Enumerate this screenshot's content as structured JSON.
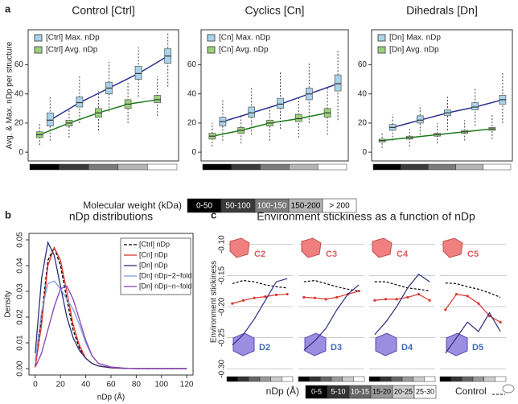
{
  "chart_data": [
    {
      "type": "box",
      "panel": "a",
      "title": "Control [Ctrl]",
      "ylabel": "Avg. & Max. nDp per structure",
      "categories": [
        null,
        null,
        null,
        null,
        null
      ],
      "category_colors": [
        "#000000",
        "#3a3a3a",
        "#7a7a7a",
        "#b4b4b4",
        "#ffffff"
      ],
      "ylim": [
        -6,
        84
      ],
      "yticks": [
        0,
        20,
        40,
        60
      ],
      "series": [
        {
          "name": "[Ctrl] Max. nDp",
          "color": "#a9d3ea",
          "line_color": "#2e3192",
          "values": [
            22,
            34,
            44,
            54,
            66
          ],
          "q1": [
            18,
            31,
            40,
            50,
            61
          ],
          "q3": [
            27,
            38,
            48,
            59,
            71
          ],
          "whisker_low": [
            8,
            20,
            28,
            38,
            45
          ],
          "whisker_high": [
            38,
            52,
            62,
            72,
            82
          ]
        },
        {
          "name": "[Ctrl] Avg. nDp",
          "color": "#9ad27a",
          "line_color": "#1a7a1a",
          "values": [
            12,
            20,
            27,
            33,
            36
          ],
          "q1": [
            10,
            18,
            24,
            30,
            34
          ],
          "q3": [
            14,
            22,
            30,
            36,
            39
          ],
          "whisker_low": [
            5,
            10,
            15,
            20,
            25
          ],
          "whisker_high": [
            20,
            30,
            42,
            48,
            52
          ]
        }
      ]
    },
    {
      "type": "box",
      "title": "Cyclics [Cn]",
      "categories": [
        null,
        null,
        null,
        null,
        null
      ],
      "category_colors": [
        "#000000",
        "#3a3a3a",
        "#7a7a7a",
        "#b4b4b4",
        "#ffffff"
      ],
      "ylim": [
        -6,
        84
      ],
      "yticks": [
        0,
        20,
        40,
        60
      ],
      "series": [
        {
          "name": "[Cn] Max. nDp",
          "color": "#a9d3ea",
          "line_color": "#2e3192",
          "values": [
            21,
            27,
            33,
            40,
            47
          ],
          "q1": [
            18,
            24,
            30,
            36,
            42
          ],
          "q3": [
            24,
            31,
            37,
            44,
            53
          ],
          "whisker_low": [
            8,
            12,
            16,
            20,
            22
          ],
          "whisker_high": [
            36,
            45,
            55,
            62,
            70
          ]
        },
        {
          "name": "[Cn] Avg. nDp",
          "color": "#9ad27a",
          "line_color": "#1a7a1a",
          "values": [
            11,
            15,
            20,
            23,
            27
          ],
          "q1": [
            9,
            13,
            18,
            21,
            24
          ],
          "q3": [
            13,
            17,
            22,
            26,
            30
          ],
          "whisker_low": [
            4,
            6,
            8,
            10,
            12
          ],
          "whisker_high": [
            20,
            26,
            32,
            37,
            44
          ]
        }
      ]
    },
    {
      "type": "box",
      "title": "Dihedrals [Dn]",
      "categories": [
        null,
        null,
        null,
        null,
        null
      ],
      "category_colors": [
        "#000000",
        "#3a3a3a",
        "#7a7a7a",
        "#b4b4b4",
        "#ffffff"
      ],
      "ylim": [
        -6,
        84
      ],
      "yticks": [
        0,
        20,
        40,
        60
      ],
      "series": [
        {
          "name": "[Dn] Max. nDp",
          "color": "#a9d3ea",
          "line_color": "#2e3192",
          "values": [
            17,
            22,
            27,
            31,
            36
          ],
          "q1": [
            15,
            20,
            25,
            29,
            33
          ],
          "q3": [
            19,
            25,
            29,
            34,
            39
          ],
          "whisker_low": [
            8,
            12,
            15,
            18,
            20
          ],
          "whisker_high": [
            26,
            32,
            38,
            44,
            55
          ]
        },
        {
          "name": "[Dn] Avg. nDp",
          "color": "#9ad27a",
          "line_color": "#1a7a1a",
          "values": [
            8,
            10,
            12,
            14,
            16
          ],
          "q1": [
            7,
            9,
            11,
            13,
            15
          ],
          "q3": [
            9,
            11,
            13,
            15,
            17
          ],
          "whisker_low": [
            3,
            4,
            6,
            8,
            9
          ],
          "whisker_high": [
            13,
            16,
            20,
            22,
            26
          ]
        }
      ]
    },
    {
      "type": "line",
      "panel": "b",
      "title": "nDp distributions",
      "xlabel": "nDp (Å)",
      "ylabel": "Density",
      "x": [
        0,
        5,
        10,
        15,
        20,
        25,
        30,
        35,
        40,
        45,
        50,
        60,
        70,
        80,
        100,
        120
      ],
      "xlim": [
        -5,
        125
      ],
      "xticks": [
        0,
        20,
        40,
        60,
        80,
        100,
        120
      ],
      "ylim": [
        -0.0025,
        0.0525
      ],
      "yticks": [
        {
          "value": 0,
          "label": "0.00"
        },
        {
          "value": 0.01,
          "label": "0.01"
        },
        {
          "value": 0.02,
          "label": "0.02"
        },
        {
          "value": 0.03,
          "label": "0.03"
        },
        {
          "value": 0.04,
          "label": "0.04"
        },
        {
          "value": 0.05,
          "label": "0.05"
        }
      ],
      "series": [
        {
          "name": "[Ctrl] nDp",
          "color": "#000000",
          "dashed": true,
          "values": [
            0.001,
            0.02,
            0.042,
            0.047,
            0.04,
            0.027,
            0.015,
            0.008,
            0.004,
            0.002,
            0.001,
            0.0003,
            0.0001,
            0,
            0,
            0
          ]
        },
        {
          "name": "[Cn] nDp",
          "color": "#e0342b",
          "values": [
            0.0005,
            0.017,
            0.04,
            0.047,
            0.042,
            0.03,
            0.017,
            0.009,
            0.004,
            0.002,
            0.001,
            0.0003,
            0.0001,
            0,
            0,
            0
          ]
        },
        {
          "name": "[Dn] nDp",
          "color": "#2b2f7a",
          "values": [
            0.006,
            0.035,
            0.049,
            0.044,
            0.032,
            0.02,
            0.012,
            0.007,
            0.004,
            0.002,
            0.001,
            0.0004,
            0.0001,
            0,
            0,
            0
          ]
        },
        {
          "name": "[Dn] nDp−2−fold",
          "color": "#7d9fd8",
          "values": [
            0.003,
            0.022,
            0.033,
            0.034,
            0.031,
            0.027,
            0.023,
            0.017,
            0.01,
            0.005,
            0.002,
            0.0006,
            0.0002,
            0,
            0,
            0
          ]
        },
        {
          "name": "[Dn] nDp−n−fold",
          "color": "#8a3fb5",
          "values": [
            0.0005,
            0.006,
            0.015,
            0.024,
            0.031,
            0.032,
            0.027,
            0.019,
            0.011,
            0.005,
            0.002,
            0.0006,
            0.0002,
            0,
            0,
            0
          ]
        }
      ]
    },
    {
      "type": "multi_line",
      "panel": "c",
      "title": "Environment stickiness as a function of nDp",
      "ylabel": "Environment stickiness",
      "ylim": [
        -0.31,
        -0.09
      ],
      "yticks": [
        {
          "value": -0.1,
          "label": "-0.10"
        },
        {
          "value": -0.15,
          "label": "-0.15"
        },
        {
          "value": -0.2,
          "label": "-0.20"
        },
        {
          "value": -0.25,
          "label": "-0.25"
        },
        {
          "value": -0.3,
          "label": "-0.30"
        }
      ],
      "panels": [
        {
          "top_label": "C2",
          "bottom_label": "D2",
          "control": [
            -0.163,
            -0.158,
            -0.16,
            -0.165,
            -0.168,
            -0.17
          ],
          "cyclic": [
            -0.195,
            -0.19,
            -0.186,
            -0.184,
            -0.181,
            -0.18
          ],
          "dihedral": [
            -0.262,
            -0.245,
            -0.22,
            -0.19,
            -0.16,
            -0.155
          ]
        },
        {
          "top_label": "C3",
          "bottom_label": "D3",
          "control": [
            -0.16,
            -0.158,
            -0.163,
            -0.168,
            -0.172,
            -0.175
          ],
          "cyclic": [
            -0.185,
            -0.186,
            -0.188,
            -0.185,
            -0.18,
            -0.175
          ],
          "dihedral": [
            -0.27,
            -0.255,
            -0.235,
            -0.205,
            -0.18,
            -0.165
          ]
        },
        {
          "top_label": "C4",
          "bottom_label": "D4",
          "control": [
            -0.16,
            -0.16,
            -0.165,
            -0.17,
            -0.172,
            -0.175
          ],
          "cyclic": [
            -0.19,
            -0.188,
            -0.188,
            -0.185,
            -0.18,
            -0.19
          ],
          "dihedral": [
            -0.245,
            -0.225,
            -0.2,
            -0.17,
            -0.148,
            -0.16
          ]
        },
        {
          "top_label": "C5",
          "bottom_label": "D5",
          "control": [
            -0.162,
            -0.163,
            -0.168,
            -0.172,
            -0.178,
            -0.185
          ],
          "cyclic": [
            -0.205,
            -0.18,
            -0.183,
            -0.195,
            -0.215,
            -0.225
          ],
          "dihedral": [
            -0.275,
            -0.25,
            -0.225,
            -0.24,
            -0.21,
            -0.24
          ]
        }
      ],
      "colors": {
        "control": "#000000",
        "cyclic": "#d9362e",
        "dihedral": "#2b2f7a"
      }
    }
  ],
  "mw_legend": {
    "title": "Molecular weight (kDa)",
    "bins": [
      "0-50",
      "50-100",
      "100-150",
      "150-200",
      "> 200"
    ],
    "colors": [
      "#000000",
      "#3a3a3a",
      "#7a7a7a",
      "#b4b4b4",
      "#ffffff"
    ]
  },
  "ndp_legend": {
    "title": "nDp (Å)",
    "bins": [
      "0-5",
      "5-10",
      "10-15",
      "15-20",
      "20-25",
      "25-30"
    ],
    "colors": [
      "#000000",
      "#333333",
      "#666666",
      "#999999",
      "#cccccc",
      "#ffffff"
    ],
    "control": "Control"
  }
}
